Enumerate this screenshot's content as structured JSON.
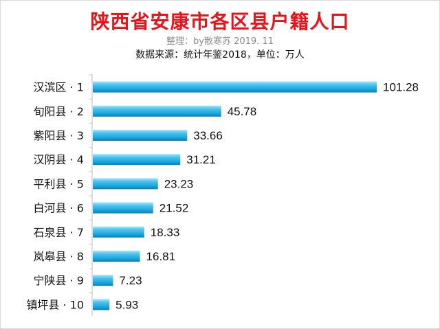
{
  "title": "陕西省安康市各区县户籍人口",
  "credit": "整理：by散寒苏 2019. 11",
  "source": "数据来源：统计年鉴2018，单位：万人",
  "colors": {
    "title": "#e8141a",
    "bar_light": "#9fe0f8",
    "bar_main": "#20aee3",
    "bar_dark": "#0b86c0"
  },
  "chart_data": {
    "type": "bar",
    "orientation": "horizontal",
    "title": "陕西省安康市各区县户籍人口",
    "categories": [
      "汉滨区 · 1",
      "旬阳县 · 2",
      "紫阳县 · 3",
      "汉阴县 · 4",
      "平利县 · 5",
      "白河县 · 6",
      "石泉县 · 7",
      "岚皋县 · 8",
      "宁陕县 · 9",
      "镇坪县 · 10"
    ],
    "values": [
      101.28,
      45.78,
      33.66,
      31.21,
      23.23,
      21.52,
      18.33,
      16.81,
      7.23,
      5.93
    ],
    "value_labels": [
      "101.28",
      "45.78",
      "33.66",
      "31.21",
      "23.23",
      "21.52",
      "18.33",
      "16.81",
      "7.23",
      "5.93"
    ],
    "xlim": [
      0,
      101.28
    ],
    "grid": false,
    "legend": "none"
  }
}
